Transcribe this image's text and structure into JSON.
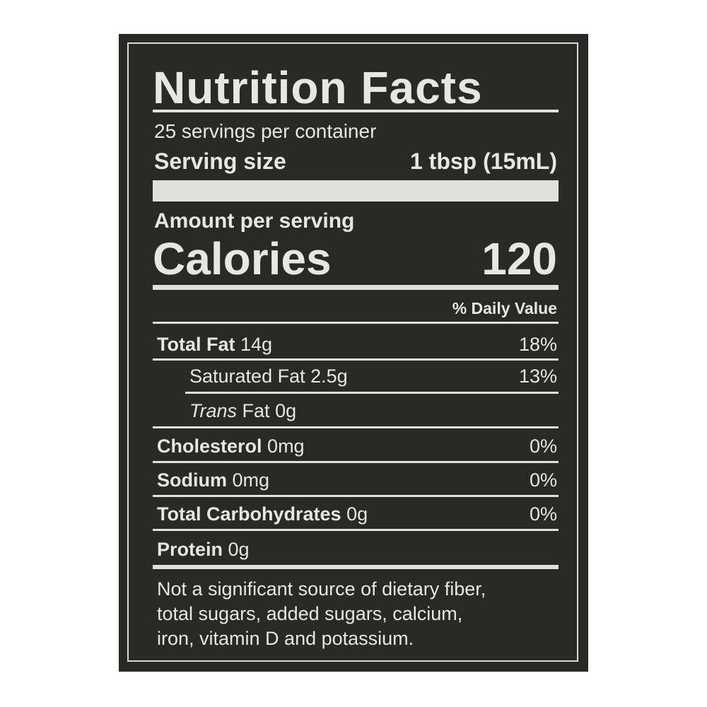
{
  "label": {
    "title": "Nutrition Facts",
    "servings_per_container": "25 servings per container",
    "serving_size_label": "Serving size",
    "serving_size_value": "1 tbsp (15mL)",
    "amount_per_serving": "Amount per serving",
    "calories_label": "Calories",
    "calories_value": "120",
    "daily_value_header": "% Daily Value",
    "nutrients": [
      {
        "name": "Total Fat",
        "amount": "14g",
        "dv": "18%"
      },
      {
        "name": "Saturated Fat",
        "amount": "2.5g",
        "dv": "13%"
      },
      {
        "name_italic": "Trans",
        "name": "Fat",
        "amount": "0g",
        "dv": ""
      },
      {
        "name": "Cholesterol",
        "amount": "0mg",
        "dv": "0%"
      },
      {
        "name": "Sodium",
        "amount": "0mg",
        "dv": "0%"
      },
      {
        "name": "Total Carbohydrates",
        "amount": "0g",
        "dv": "0%"
      },
      {
        "name": "Protein",
        "amount": "0g",
        "dv": ""
      }
    ],
    "footnote_lines": [
      "Not a significant source of dietary fiber,",
      "total sugars, added sugars, calcium,",
      "iron, vitamin D and potassium."
    ]
  },
  "colors": {
    "panel": "#2b2925",
    "text": "#e6e6e2",
    "page": "#ffffff"
  }
}
